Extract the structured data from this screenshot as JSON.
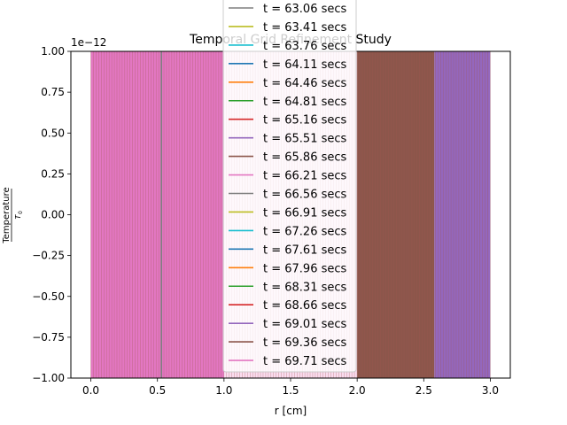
{
  "chart_data": {
    "type": "line",
    "title": "Temporal Grid Refinement Study",
    "xlabel": "r [cm]",
    "ylabel": "Temperature / T0",
    "ylabel_parts": {
      "numerator": "Temperature",
      "denominator": "T",
      "subscript": "0"
    },
    "offset_text": "1e−12",
    "xlim": [
      -0.15,
      3.15
    ],
    "ylim": [
      -1.0,
      1.0
    ],
    "x_ticks": [
      0.0,
      0.5,
      1.0,
      1.5,
      2.0,
      2.5,
      3.0
    ],
    "x_tick_labels": [
      "0.0",
      "0.5",
      "1.0",
      "1.5",
      "2.0",
      "2.5",
      "3.0"
    ],
    "y_ticks": [
      -1.0,
      -0.75,
      -0.5,
      -0.25,
      0.0,
      0.25,
      0.5,
      0.75,
      1.0
    ],
    "y_tick_labels": [
      "−1.00",
      "−0.75",
      "−0.50",
      "−0.25",
      "0.00",
      "0.25",
      "0.50",
      "0.75",
      "1.00"
    ],
    "grid": false,
    "legend_position": "top-center",
    "fill_bands": [
      {
        "x_start": 0.0,
        "x_end": 1.0,
        "color": "#e377c2"
      },
      {
        "x_start": 1.0,
        "x_end": 2.0,
        "color": "#fadcef"
      },
      {
        "x_start": 2.0,
        "x_end": 2.58,
        "color": "#8c564b"
      },
      {
        "x_start": 2.58,
        "x_end": 3.0,
        "color": "#9467bd"
      }
    ],
    "line_color_stripes": "#a05a50",
    "highlight_line": {
      "x": 0.53,
      "color": "#7f7f7f"
    },
    "series": [
      {
        "name": "t = 63.06 secs",
        "color": "#7f7f7f"
      },
      {
        "name": "t = 63.41 secs",
        "color": "#bcbd22"
      },
      {
        "name": "t = 63.76 secs",
        "color": "#17becf"
      },
      {
        "name": "t = 64.11 secs",
        "color": "#1f77b4"
      },
      {
        "name": "t = 64.46 secs",
        "color": "#ff7f0e"
      },
      {
        "name": "t = 64.81 secs",
        "color": "#2ca02c"
      },
      {
        "name": "t = 65.16 secs",
        "color": "#d62728"
      },
      {
        "name": "t = 65.51 secs",
        "color": "#9467bd"
      },
      {
        "name": "t = 65.86 secs",
        "color": "#8c564b"
      },
      {
        "name": "t = 66.21 secs",
        "color": "#e377c2"
      },
      {
        "name": "t = 66.56 secs",
        "color": "#7f7f7f"
      },
      {
        "name": "t = 66.91 secs",
        "color": "#bcbd22"
      },
      {
        "name": "t = 67.26 secs",
        "color": "#17becf"
      },
      {
        "name": "t = 67.61 secs",
        "color": "#1f77b4"
      },
      {
        "name": "t = 67.96 secs",
        "color": "#ff7f0e"
      },
      {
        "name": "t = 68.31 secs",
        "color": "#2ca02c"
      },
      {
        "name": "t = 68.66 secs",
        "color": "#d62728"
      },
      {
        "name": "t = 69.01 secs",
        "color": "#9467bd"
      },
      {
        "name": "t = 69.36 secs",
        "color": "#8c564b"
      },
      {
        "name": "t = 69.71 secs",
        "color": "#e377c2"
      }
    ]
  }
}
